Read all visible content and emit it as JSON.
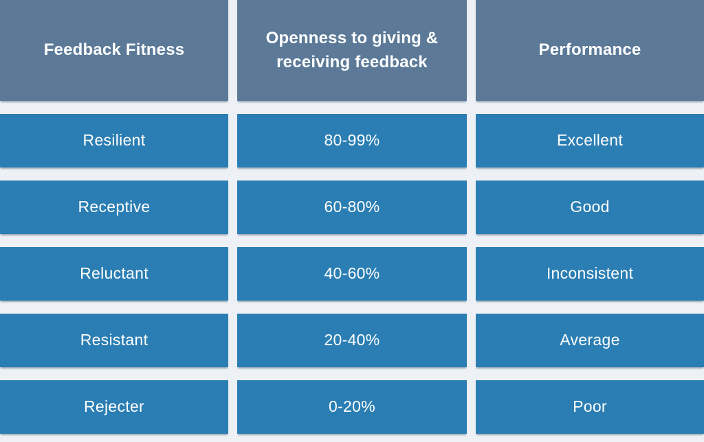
{
  "colors": {
    "header_bg": "#5c7a98",
    "cell_bg": "#2b7eb3",
    "page_bg": "#edf1f5",
    "text": "#ffffff"
  },
  "chart_data": {
    "type": "table",
    "columns": [
      "Feedback Fitness",
      "Openness to giving & receiving feedback",
      "Performance"
    ],
    "rows": [
      [
        "Resilient",
        "80-99%",
        "Excellent"
      ],
      [
        "Receptive",
        "60-80%",
        "Good"
      ],
      [
        "Reluctant",
        "40-60%",
        "Inconsistent"
      ],
      [
        "Resistant",
        "20-40%",
        "Average"
      ],
      [
        "Rejecter",
        "0-20%",
        "Poor"
      ]
    ]
  }
}
